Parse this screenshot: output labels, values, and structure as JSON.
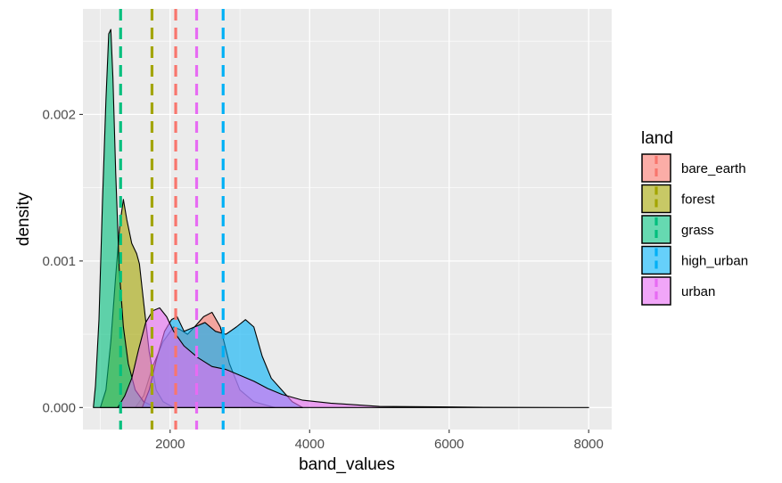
{
  "chart_data": {
    "type": "area",
    "chart_kind": "density",
    "xlabel": "band_values",
    "ylabel": "density",
    "xlim": [
      750,
      8330
    ],
    "ylim": [
      -0.00015,
      0.00272
    ],
    "x_ticks": [
      2000,
      4000,
      6000,
      8000
    ],
    "x_tick_labels": [
      "2000",
      "4000",
      "6000",
      "8000"
    ],
    "y_ticks": [
      0,
      0.001,
      0.002
    ],
    "y_tick_labels": [
      "0.000",
      "0.001",
      "0.002"
    ],
    "grid": true,
    "legend": {
      "title": "land",
      "position": "right",
      "entries": [
        "bare_earth",
        "forest",
        "grass",
        "high_urban",
        "urban"
      ]
    },
    "series": [
      {
        "name": "bare_earth",
        "color": "#F8766D",
        "mean": 2080,
        "points": [
          [
            1500,
            0
          ],
          [
            1620,
            8e-05
          ],
          [
            1750,
            0.00028
          ],
          [
            1900,
            0.00045
          ],
          [
            2050,
            0.00055
          ],
          [
            2150,
            0.00053
          ],
          [
            2250,
            0.0005
          ],
          [
            2350,
            0.00055
          ],
          [
            2480,
            0.00062
          ],
          [
            2600,
            0.00065
          ],
          [
            2720,
            0.00055
          ],
          [
            2850,
            0.0003
          ],
          [
            3000,
            0.00012
          ],
          [
            3200,
            4e-05
          ],
          [
            3500,
            0
          ]
        ]
      },
      {
        "name": "forest",
        "color": "#A3A500",
        "mean": 1740,
        "points": [
          [
            1000,
            0
          ],
          [
            1080,
            0.00012
          ],
          [
            1150,
            0.00045
          ],
          [
            1220,
            0.0009
          ],
          [
            1280,
            0.00125
          ],
          [
            1330,
            0.00142
          ],
          [
            1380,
            0.00128
          ],
          [
            1450,
            0.00112
          ],
          [
            1520,
            0.00105
          ],
          [
            1560,
            0.00098
          ],
          [
            1620,
            0.00072
          ],
          [
            1700,
            0.00038
          ],
          [
            1800,
            0.00012
          ],
          [
            1900,
            4e-05
          ],
          [
            2050,
            0
          ]
        ]
      },
      {
        "name": "grass",
        "color": "#00BF7D",
        "mean": 1290,
        "points": [
          [
            900,
            0
          ],
          [
            930,
            0.00015
          ],
          [
            980,
            0.0006
          ],
          [
            1030,
            0.0014
          ],
          [
            1080,
            0.0021
          ],
          [
            1120,
            0.00255
          ],
          [
            1150,
            0.00258
          ],
          [
            1180,
            0.00225
          ],
          [
            1220,
            0.0016
          ],
          [
            1270,
            0.00095
          ],
          [
            1330,
            0.00055
          ],
          [
            1400,
            0.0003
          ],
          [
            1500,
            0.00012
          ],
          [
            1620,
            4e-05
          ],
          [
            1800,
            0
          ]
        ]
      },
      {
        "name": "high_urban",
        "color": "#00B0F6",
        "mean": 2760,
        "points": [
          [
            1600,
            0
          ],
          [
            1700,
            0.00012
          ],
          [
            1800,
            0.00032
          ],
          [
            1920,
            0.00052
          ],
          [
            2020,
            0.0006
          ],
          [
            2100,
            0.00062
          ],
          [
            2200,
            0.00052
          ],
          [
            2350,
            0.00055
          ],
          [
            2500,
            0.00058
          ],
          [
            2650,
            0.00052
          ],
          [
            2800,
            0.0005
          ],
          [
            2950,
            0.00055
          ],
          [
            3080,
            0.0006
          ],
          [
            3200,
            0.00055
          ],
          [
            3320,
            0.00035
          ],
          [
            3450,
            0.0002
          ],
          [
            3600,
            0.00012
          ],
          [
            3750,
            4e-05
          ],
          [
            3900,
            0
          ]
        ]
      },
      {
        "name": "urban",
        "color": "#E76BF3",
        "mean": 2380,
        "points": [
          [
            1250,
            0
          ],
          [
            1350,
            8e-05
          ],
          [
            1450,
            0.0002
          ],
          [
            1550,
            0.0004
          ],
          [
            1650,
            0.00058
          ],
          [
            1750,
            0.00066
          ],
          [
            1850,
            0.00068
          ],
          [
            1950,
            0.00062
          ],
          [
            2050,
            0.00052
          ],
          [
            2200,
            0.00042
          ],
          [
            2400,
            0.00034
          ],
          [
            2600,
            0.00028
          ],
          [
            2800,
            0.00026
          ],
          [
            3000,
            0.00022
          ],
          [
            3200,
            0.00018
          ],
          [
            3400,
            0.00013
          ],
          [
            3600,
            9e-05
          ],
          [
            3900,
            5e-05
          ],
          [
            4300,
            3e-05
          ],
          [
            5000,
            8e-06
          ],
          [
            6500,
            2e-06
          ],
          [
            8000,
            0
          ]
        ]
      }
    ]
  }
}
